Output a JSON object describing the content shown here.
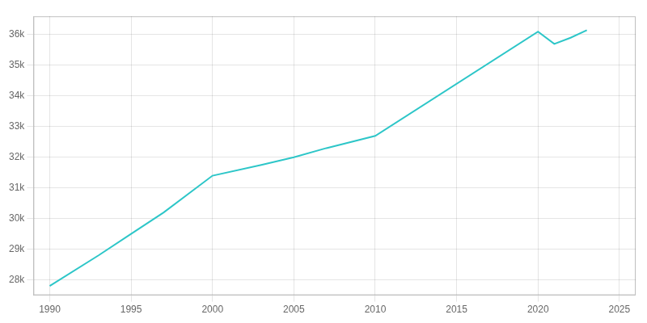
{
  "chart_data": {
    "type": "line",
    "x": [
      1990,
      1993,
      1995,
      1997,
      2000,
      2003,
      2005,
      2007,
      2010,
      2020,
      2021,
      2022,
      2023
    ],
    "values": [
      27800,
      28800,
      29500,
      30200,
      31400,
      31750,
      32000,
      32300,
      32700,
      36100,
      35700,
      35900,
      36150
    ],
    "color": "#2dc6c8",
    "xlim": [
      1989,
      2026
    ],
    "ylim": [
      27500,
      36600
    ],
    "xticks": [
      1990,
      1995,
      2000,
      2005,
      2010,
      2015,
      2020,
      2025
    ],
    "yticks": [
      {
        "value": 28000,
        "label": "28k"
      },
      {
        "value": 29000,
        "label": "29k"
      },
      {
        "value": 30000,
        "label": "30k"
      },
      {
        "value": 31000,
        "label": "31k"
      },
      {
        "value": 32000,
        "label": "32k"
      },
      {
        "value": 33000,
        "label": "33k"
      },
      {
        "value": 34000,
        "label": "34k"
      },
      {
        "value": 35000,
        "label": "35k"
      },
      {
        "value": 36000,
        "label": "36k"
      }
    ],
    "grid": true
  }
}
